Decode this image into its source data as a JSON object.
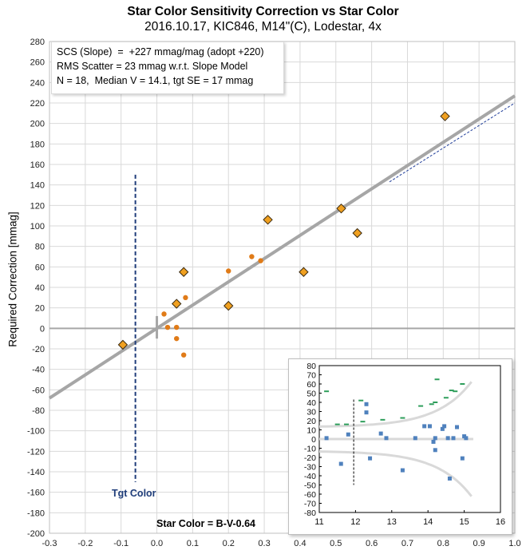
{
  "chart_data": [
    {
      "type": "scatter",
      "title": "Star Color Sensitivity Correction vs Star Color",
      "subtitle": "2016.10.17, KIC846, M14\"(C), Lodestar, 4x",
      "ylabel": "Required Correction [mmag]",
      "xlabel": "Star Color = B-V-0.64",
      "xlim": [
        -0.3,
        1.0
      ],
      "ylim": [
        -200,
        280
      ],
      "x_ticks": [
        "-0.3",
        "-0.2",
        "-0.1",
        "0.0",
        "0.1",
        "0.2",
        "0.3",
        "0.4",
        "0.5",
        "0.6",
        "0.7",
        "0.8",
        "0.9",
        "1.0"
      ],
      "y_ticks": [
        "-200",
        "-180",
        "-160",
        "-140",
        "-120",
        "-100",
        "-80",
        "-60",
        "-40",
        "-20",
        "0",
        "20",
        "40",
        "60",
        "80",
        "100",
        "120",
        "140",
        "160",
        "180",
        "200",
        "220",
        "240",
        "260",
        "280"
      ],
      "grid": true,
      "annotations": [
        "SCS (Slope)  =  +227 mmag/mag (adopt +220)",
        "RMS Scatter = 23 mmag w.r.t. Slope Model",
        "N = 18,  Median V = 14.1, tgt SE = 17 mmag"
      ],
      "target_label": "Tgt Color",
      "target_color_x": -0.06,
      "series": [
        {
          "marker": "diamond",
          "color": "#f0a020",
          "points": [
            [
              -0.095,
              -16
            ],
            [
              0.055,
              24
            ],
            [
              0.075,
              55
            ],
            [
              0.2,
              22
            ],
            [
              0.31,
              106
            ],
            [
              0.41,
              55
            ],
            [
              0.515,
              117
            ],
            [
              0.56,
              93
            ],
            [
              0.805,
              207
            ]
          ]
        },
        {
          "marker": "dot",
          "color": "#e07b18",
          "points": [
            [
              0.02,
              14
            ],
            [
              0.03,
              1
            ],
            [
              0.055,
              1
            ],
            [
              0.055,
              -10
            ],
            [
              0.08,
              30
            ],
            [
              0.075,
              -26
            ],
            [
              0.2,
              56
            ],
            [
              0.265,
              70
            ],
            [
              0.29,
              66
            ]
          ]
        }
      ],
      "fit_line": {
        "slope": 227,
        "intercept": 0,
        "color": "#a6a6a6"
      },
      "adopt_line": {
        "slope": 220,
        "intercept": 0,
        "color": "#1f3d9a",
        "style": "dashed"
      }
    },
    {
      "type": "scatter",
      "xlim": [
        11,
        16
      ],
      "ylim": [
        -80,
        80
      ],
      "x_ticks": [
        "11",
        "12",
        "13",
        "14",
        "15",
        "16"
      ],
      "y_ticks": [
        "-80",
        "-70",
        "-60",
        "-50",
        "-40",
        "-30",
        "-20",
        "-10",
        "0",
        "10",
        "20",
        "30",
        "40",
        "50",
        "60",
        "70",
        "80"
      ],
      "target_mag_x": 11.95,
      "series": [
        {
          "marker": "square",
          "color": "#4f81bd",
          "points": [
            [
              11.2,
              1
            ],
            [
              11.6,
              -27
            ],
            [
              11.8,
              5
            ],
            [
              12.3,
              38
            ],
            [
              12.3,
              29
            ],
            [
              12.4,
              -21
            ],
            [
              12.7,
              6
            ],
            [
              12.85,
              1
            ],
            [
              13.3,
              -34
            ],
            [
              13.65,
              1
            ],
            [
              13.9,
              14
            ],
            [
              14.05,
              14
            ],
            [
              14.15,
              -3
            ],
            [
              14.2,
              -12
            ],
            [
              14.2,
              1
            ],
            [
              14.4,
              11
            ],
            [
              14.45,
              14
            ],
            [
              14.55,
              1
            ],
            [
              14.7,
              1
            ],
            [
              14.8,
              13
            ],
            [
              14.6,
              -43
            ],
            [
              14.95,
              -21
            ],
            [
              15.0,
              3
            ],
            [
              15.05,
              1
            ]
          ]
        },
        {
          "marker": "dash",
          "color": "#2e9e5b",
          "points": [
            [
              11.2,
              52
            ],
            [
              11.5,
              16
            ],
            [
              11.75,
              16
            ],
            [
              12.15,
              42
            ],
            [
              12.2,
              19
            ],
            [
              12.75,
              21
            ],
            [
              13.3,
              23
            ],
            [
              13.8,
              36
            ],
            [
              14.1,
              38
            ],
            [
              14.2,
              40
            ],
            [
              14.25,
              65
            ],
            [
              14.5,
              45
            ],
            [
              14.65,
              53
            ],
            [
              14.75,
              52
            ],
            [
              14.95,
              60
            ]
          ]
        }
      ],
      "band_color": "#d9d9d9"
    }
  ]
}
